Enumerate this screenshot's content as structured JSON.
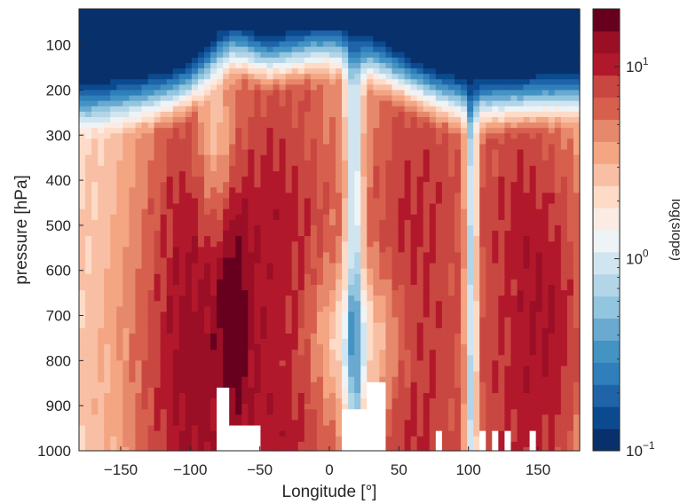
{
  "chart_data": {
    "type": "heatmap",
    "xlabel": "Longitude [°]",
    "ylabel": "pressure [hPa]",
    "xlim": [
      -180,
      180
    ],
    "ylim": [
      1000,
      20
    ],
    "x_ticks": [
      -150,
      -100,
      -50,
      0,
      50,
      100,
      150
    ],
    "y_ticks": [
      100,
      200,
      300,
      400,
      500,
      600,
      700,
      800,
      900,
      1000
    ],
    "colorbar": {
      "label": "log(slope)",
      "scale": "log",
      "range": [
        0.1,
        20
      ],
      "ticks": [
        {
          "base": "10",
          "exp": "-1",
          "value": 0.1
        },
        {
          "base": "10",
          "exp": "0",
          "value": 1
        },
        {
          "base": "10",
          "exp": "1",
          "value": 10
        }
      ],
      "colors": [
        "#08306b",
        "#0b4a8f",
        "#1f63a8",
        "#2f7fba",
        "#4393c3",
        "#6aa9d0",
        "#92c5de",
        "#b3d5e8",
        "#d1e5f0",
        "#eef3f6",
        "#faece4",
        "#fddbc7",
        "#f8bfa4",
        "#f4a582",
        "#e6886b",
        "#d6604d",
        "#c94741",
        "#b2182b",
        "#9a0f26",
        "#67001f"
      ]
    },
    "regions": [
      {
        "description": "stratosphere top band",
        "p_range": [
          20,
          70
        ],
        "lon_range": [
          -180,
          180
        ],
        "slope": 0.1
      },
      {
        "description": "low values aloft over -70..60",
        "p_range": [
          70,
          200
        ],
        "lon_range": [
          -70,
          60
        ],
        "slope": 0.1
      },
      {
        "description": "ridge of high slope near -100, lower troposphere",
        "p_range": [
          500,
          1000
        ],
        "lon_range": [
          -180,
          -110
        ],
        "slope": 15
      },
      {
        "description": "maximum near -70 lon, 700 hPa",
        "p_range": [
          550,
          950
        ],
        "lon_range": [
          -80,
          -60
        ],
        "slope": 20
      },
      {
        "description": "narrow low-slope column near 20 lon",
        "p_range": [
          200,
          1000
        ],
        "lon_range": [
          15,
          22
        ],
        "slope": 1
      },
      {
        "description": "narrow low-slope column near 102 lon",
        "p_range": [
          250,
          1000
        ],
        "lon_range": [
          100,
          105
        ],
        "slope": 0.8
      },
      {
        "description": "high slope east side",
        "p_range": [
          500,
          1000
        ],
        "lon_range": [
          150,
          180
        ],
        "slope": 18
      }
    ],
    "missing_blocks_lon": [
      [
        -92,
        -90
      ],
      [
        -82,
        -50
      ],
      [
        10,
        42
      ],
      [
        77,
        80
      ],
      [
        97,
        100
      ],
      [
        106,
        113
      ],
      [
        117,
        123
      ],
      [
        126,
        130
      ],
      [
        133,
        135
      ],
      [
        145,
        148
      ]
    ]
  }
}
